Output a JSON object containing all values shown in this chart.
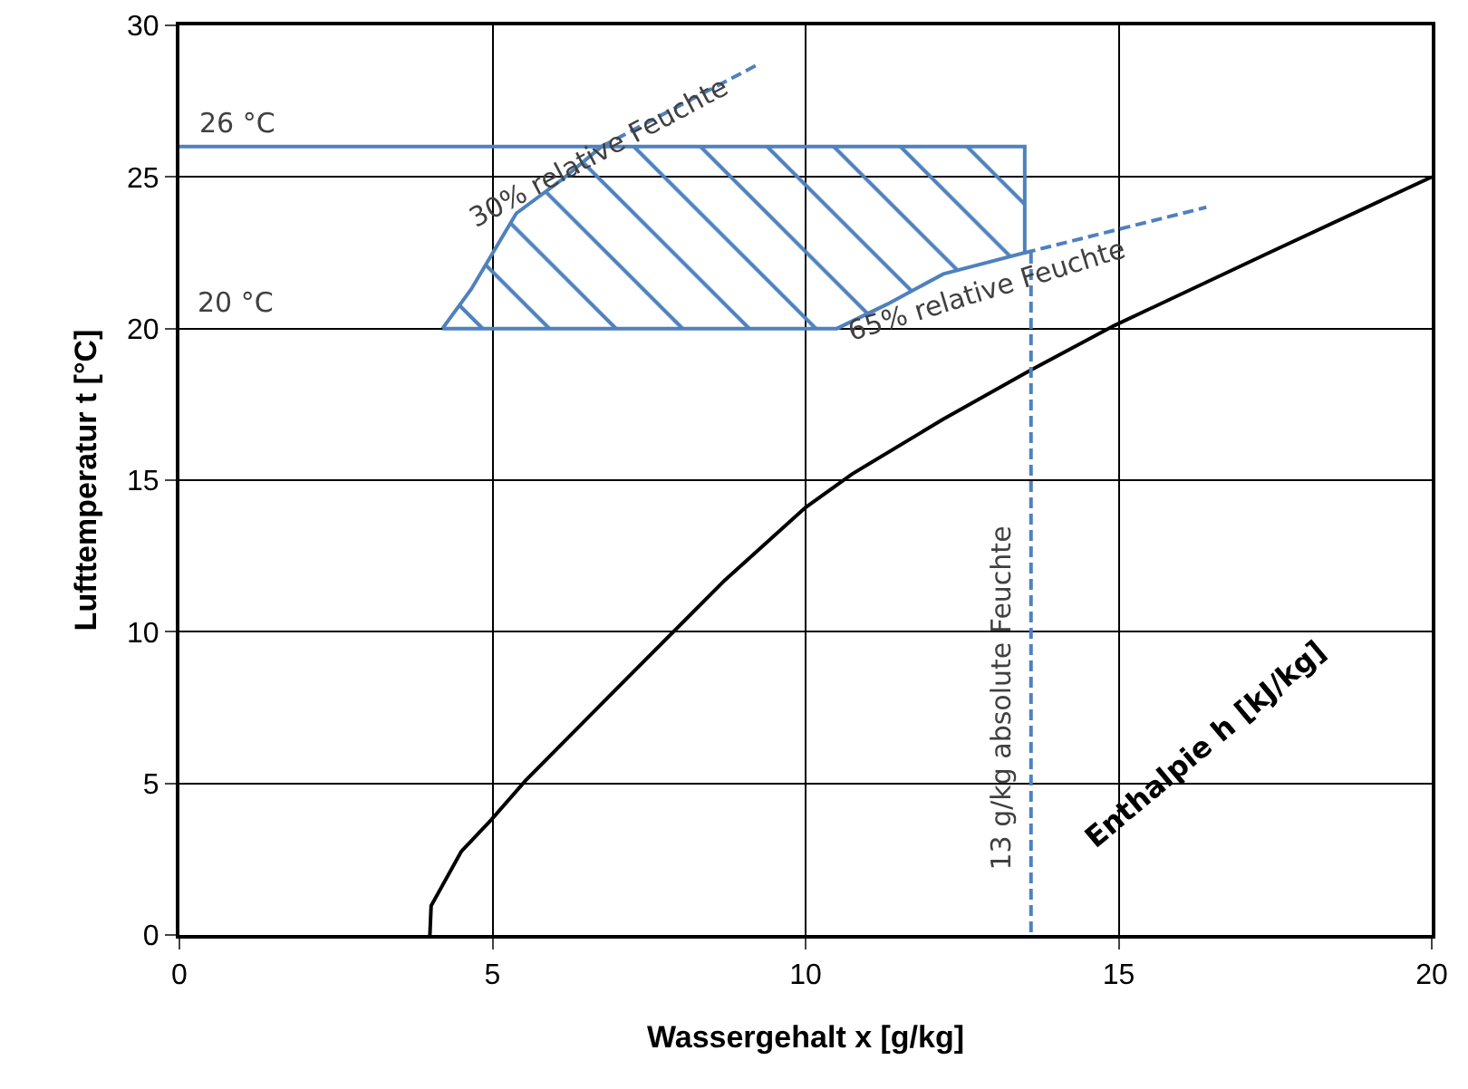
{
  "chart_data": {
    "type": "line",
    "xlabel": "Wassergehalt x [g/kg]",
    "ylabel": "Lufttemperatur t [°C]",
    "xlim": [
      0,
      20
    ],
    "xticks": [
      0,
      5,
      10,
      15,
      20
    ],
    "ylim": [
      0,
      30
    ],
    "yticks": [
      0,
      5,
      10,
      15,
      20,
      25,
      30
    ],
    "grid": true,
    "marker": "none",
    "series": [
      {
        "color": "#000000",
        "x": [
          4.0,
          4.02,
          4.5,
          4.98,
          5.53,
          7.26,
          8.71,
          10.0,
          10.74,
          12.19,
          13.57,
          14.93,
          17.4,
          20
        ],
        "values": [
          0,
          0.96,
          2.75,
          3.8,
          5.1,
          8.7,
          11.7,
          14.1,
          15.2,
          17.0,
          18.6,
          20.1,
          22.5,
          25
        ]
      },
      {
        "type": "area",
        "color": "#4f81bd",
        "x": [
          4.2,
          4.66,
          5.38,
          6.1,
          6.74,
          13.5,
          13.5,
          12.2,
          11.3,
          10.5,
          4.2
        ],
        "values": [
          20,
          21.3,
          23.8,
          24.9,
          26,
          26,
          22.5,
          21.8,
          20.8,
          20,
          20
        ]
      },
      {
        "color": "#4f81bd",
        "x": [
          0,
          6.74
        ],
        "values": [
          26,
          26
        ]
      },
      {
        "color": "#4f81bd",
        "line_style": "dashed",
        "x": [
          6.74,
          9.23
        ],
        "values": [
          26,
          28.7
        ]
      },
      {
        "color": "#4f81bd",
        "line_style": "dashed",
        "x": [
          13.5,
          16.4
        ],
        "values": [
          22.5,
          24.0
        ]
      },
      {
        "color": "#4f81bd",
        "line_style": "dashed",
        "x": [
          13.6,
          13.6
        ],
        "values": [
          22.5,
          0
        ]
      }
    ],
    "annotations": [
      "26 °C",
      "20 °C",
      {
        "text": "30% relative Feuchte",
        "x": 6.7,
        "y": 25.8
      },
      "65% relative Feuchte",
      "13 g/kg absolute Feuchte",
      "Enthalpie h [kJ/kg]"
    ]
  }
}
